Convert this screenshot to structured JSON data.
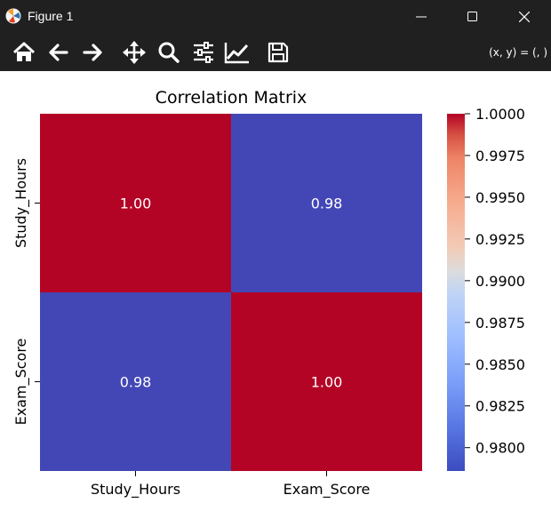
{
  "window": {
    "title": "Figure 1",
    "bg_color": "#202020"
  },
  "toolbar": {
    "tools": [
      {
        "name": "home-icon"
      },
      {
        "name": "back-arrow-icon"
      },
      {
        "name": "forward-arrow-icon"
      },
      {
        "name": "pan-move-icon"
      },
      {
        "name": "zoom-magnifier-icon"
      },
      {
        "name": "configure-subplots-icon"
      },
      {
        "name": "edit-axis-lines-icon"
      },
      {
        "name": "save-floppy-icon"
      }
    ],
    "coords_text": "(x, y) = (, )"
  },
  "chart_data": {
    "type": "heatmap",
    "title": "Correlation Matrix",
    "x_categories": [
      "Study_Hours",
      "Exam_Score"
    ],
    "y_categories": [
      "Study_Hours",
      "Exam_Score"
    ],
    "values": [
      [
        1.0,
        0.98
      ],
      [
        0.98,
        1.0
      ]
    ],
    "annotations": [
      [
        "1.00",
        "0.98"
      ],
      [
        "0.98",
        "1.00"
      ]
    ],
    "colormap": "coolwarm",
    "color_low": "#3b4cc0",
    "color_high": "#b40426",
    "colorbar": {
      "range": [
        0.9786,
        1.0
      ],
      "ticks": [
        0.98,
        0.9825,
        0.985,
        0.9875,
        0.99,
        0.9925,
        0.995,
        0.9975,
        1.0
      ],
      "tick_labels": [
        "0.9800",
        "0.9825",
        "0.9850",
        "0.9875",
        "0.9900",
        "0.9925",
        "0.9950",
        "0.9975",
        "1.0000"
      ]
    }
  }
}
